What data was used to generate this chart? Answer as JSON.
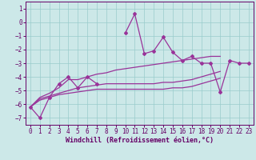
{
  "xlabel": "Windchill (Refroidissement éolien,°C)",
  "background_color": "#cce8e8",
  "grid_color": "#99cccc",
  "line_color": "#993399",
  "x_values": [
    0,
    1,
    2,
    3,
    4,
    5,
    6,
    7,
    8,
    9,
    10,
    11,
    12,
    13,
    14,
    15,
    16,
    17,
    18,
    19,
    20,
    21,
    22,
    23
  ],
  "series1": [
    -6.2,
    -7.0,
    -5.5,
    -4.5,
    -4.0,
    -4.8,
    -4.0,
    -4.5,
    null,
    null,
    -0.8,
    0.6,
    -2.3,
    -2.1,
    -1.1,
    -2.2,
    -2.8,
    -2.5,
    -3.0,
    -3.0,
    -5.1,
    -2.8,
    -3.0,
    -3.0
  ],
  "series2": [
    -6.2,
    -5.5,
    -5.2,
    -4.8,
    -4.2,
    -4.2,
    -4.0,
    -3.8,
    -3.7,
    -3.5,
    -3.4,
    -3.3,
    -3.2,
    -3.1,
    -3.0,
    -2.9,
    -2.8,
    -2.7,
    -2.6,
    -2.5,
    -2.5,
    null,
    null,
    null
  ],
  "series3": [
    -6.2,
    -5.6,
    -5.4,
    -5.2,
    -5.0,
    -4.8,
    -4.7,
    -4.6,
    -4.5,
    -4.5,
    -4.5,
    -4.5,
    -4.5,
    -4.5,
    -4.4,
    -4.4,
    -4.3,
    -4.2,
    -4.0,
    -3.8,
    -3.6,
    null,
    null,
    null
  ],
  "series4": [
    -6.2,
    -5.7,
    -5.5,
    -5.3,
    -5.2,
    -5.1,
    -5.0,
    -4.9,
    -4.9,
    -4.9,
    -4.9,
    -4.9,
    -4.9,
    -4.9,
    -4.9,
    -4.8,
    -4.8,
    -4.7,
    -4.5,
    -4.3,
    -4.1,
    null,
    null,
    null
  ],
  "ylim": [
    -7.5,
    1.5
  ],
  "yticks": [
    1,
    0,
    -1,
    -2,
    -3,
    -4,
    -5,
    -6,
    -7
  ],
  "xlim": [
    -0.5,
    23.5
  ],
  "xticks": [
    0,
    1,
    2,
    3,
    4,
    5,
    6,
    7,
    8,
    9,
    10,
    11,
    12,
    13,
    14,
    15,
    16,
    17,
    18,
    19,
    20,
    21,
    22,
    23
  ],
  "tick_color": "#660066",
  "label_fontsize": 5.5,
  "xlabel_fontsize": 6.0
}
